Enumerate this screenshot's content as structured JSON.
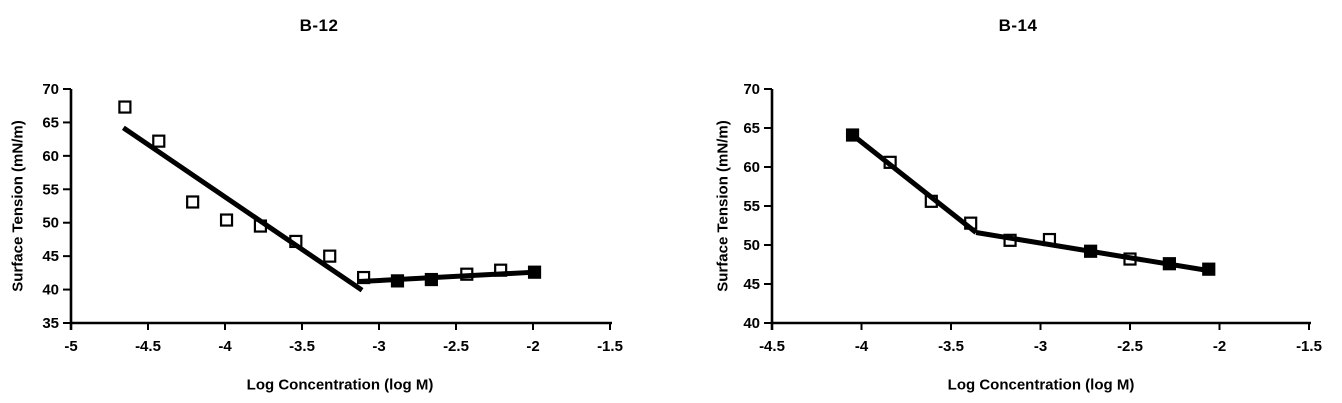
{
  "page": {
    "background_color": "#ffffff",
    "ink_color": "#000000"
  },
  "chart_data": [
    {
      "type": "scatter",
      "title": "B-12",
      "xlabel": "Log Concentration (log M)",
      "ylabel": "Surface Tension (mN/m)",
      "xlim": [
        -5,
        -1.5
      ],
      "ylim": [
        35,
        70
      ],
      "x_ticks": [
        -5,
        -4.5,
        -4,
        -3.5,
        -3,
        -2.5,
        -2,
        -1.5
      ],
      "y_ticks": [
        35,
        40,
        45,
        50,
        55,
        60,
        65,
        70
      ],
      "grid": false,
      "legend": "none",
      "marker": "open-square",
      "points": [
        {
          "x": -4.65,
          "y": 67.3,
          "filled": false
        },
        {
          "x": -4.43,
          "y": 62.2,
          "filled": false
        },
        {
          "x": -4.21,
          "y": 53.1,
          "filled": false
        },
        {
          "x": -3.99,
          "y": 50.4,
          "filled": false
        },
        {
          "x": -3.77,
          "y": 49.5,
          "filled": false
        },
        {
          "x": -3.54,
          "y": 47.2,
          "filled": false
        },
        {
          "x": -3.32,
          "y": 45.0,
          "filled": false
        },
        {
          "x": -3.1,
          "y": 41.8,
          "filled": false
        },
        {
          "x": -2.88,
          "y": 41.3,
          "filled": true
        },
        {
          "x": -2.66,
          "y": 41.5,
          "filled": true
        },
        {
          "x": -2.43,
          "y": 42.3,
          "filled": false
        },
        {
          "x": -2.21,
          "y": 42.9,
          "filled": false
        },
        {
          "x": -1.99,
          "y": 42.6,
          "filled": true
        }
      ],
      "fit_lines": [
        {
          "x1": -4.66,
          "y1": 64.2,
          "x2": -3.11,
          "y2": 39.9
        },
        {
          "x1": -3.13,
          "y1": 41.2,
          "x2": -1.99,
          "y2": 42.6
        }
      ]
    },
    {
      "type": "scatter",
      "title": "B-14",
      "xlabel": "Log Concentration (log M)",
      "ylabel": "Surface Tension (mN/m)",
      "xlim": [
        -4.5,
        -1.5
      ],
      "ylim": [
        40,
        70
      ],
      "x_ticks": [
        -4.5,
        -4,
        -3.5,
        -3,
        -2.5,
        -2,
        -1.5
      ],
      "y_ticks": [
        40,
        45,
        50,
        55,
        60,
        65,
        70
      ],
      "grid": false,
      "legend": "none",
      "marker": "open-square",
      "points": [
        {
          "x": -4.05,
          "y": 64.1,
          "filled": true
        },
        {
          "x": -3.84,
          "y": 60.6,
          "filled": false
        },
        {
          "x": -3.61,
          "y": 55.6,
          "filled": false
        },
        {
          "x": -3.39,
          "y": 52.8,
          "filled": false
        },
        {
          "x": -3.17,
          "y": 50.6,
          "filled": false
        },
        {
          "x": -2.95,
          "y": 50.7,
          "filled": false
        },
        {
          "x": -2.72,
          "y": 49.2,
          "filled": true
        },
        {
          "x": -2.5,
          "y": 48.2,
          "filled": false
        },
        {
          "x": -2.28,
          "y": 47.6,
          "filled": true
        },
        {
          "x": -2.06,
          "y": 46.9,
          "filled": true
        }
      ],
      "fit_lines": [
        {
          "x1": -4.05,
          "y1": 64.1,
          "x2": -3.36,
          "y2": 51.6
        },
        {
          "x1": -3.36,
          "y1": 51.6,
          "x2": -2.03,
          "y2": 46.6
        }
      ]
    }
  ]
}
